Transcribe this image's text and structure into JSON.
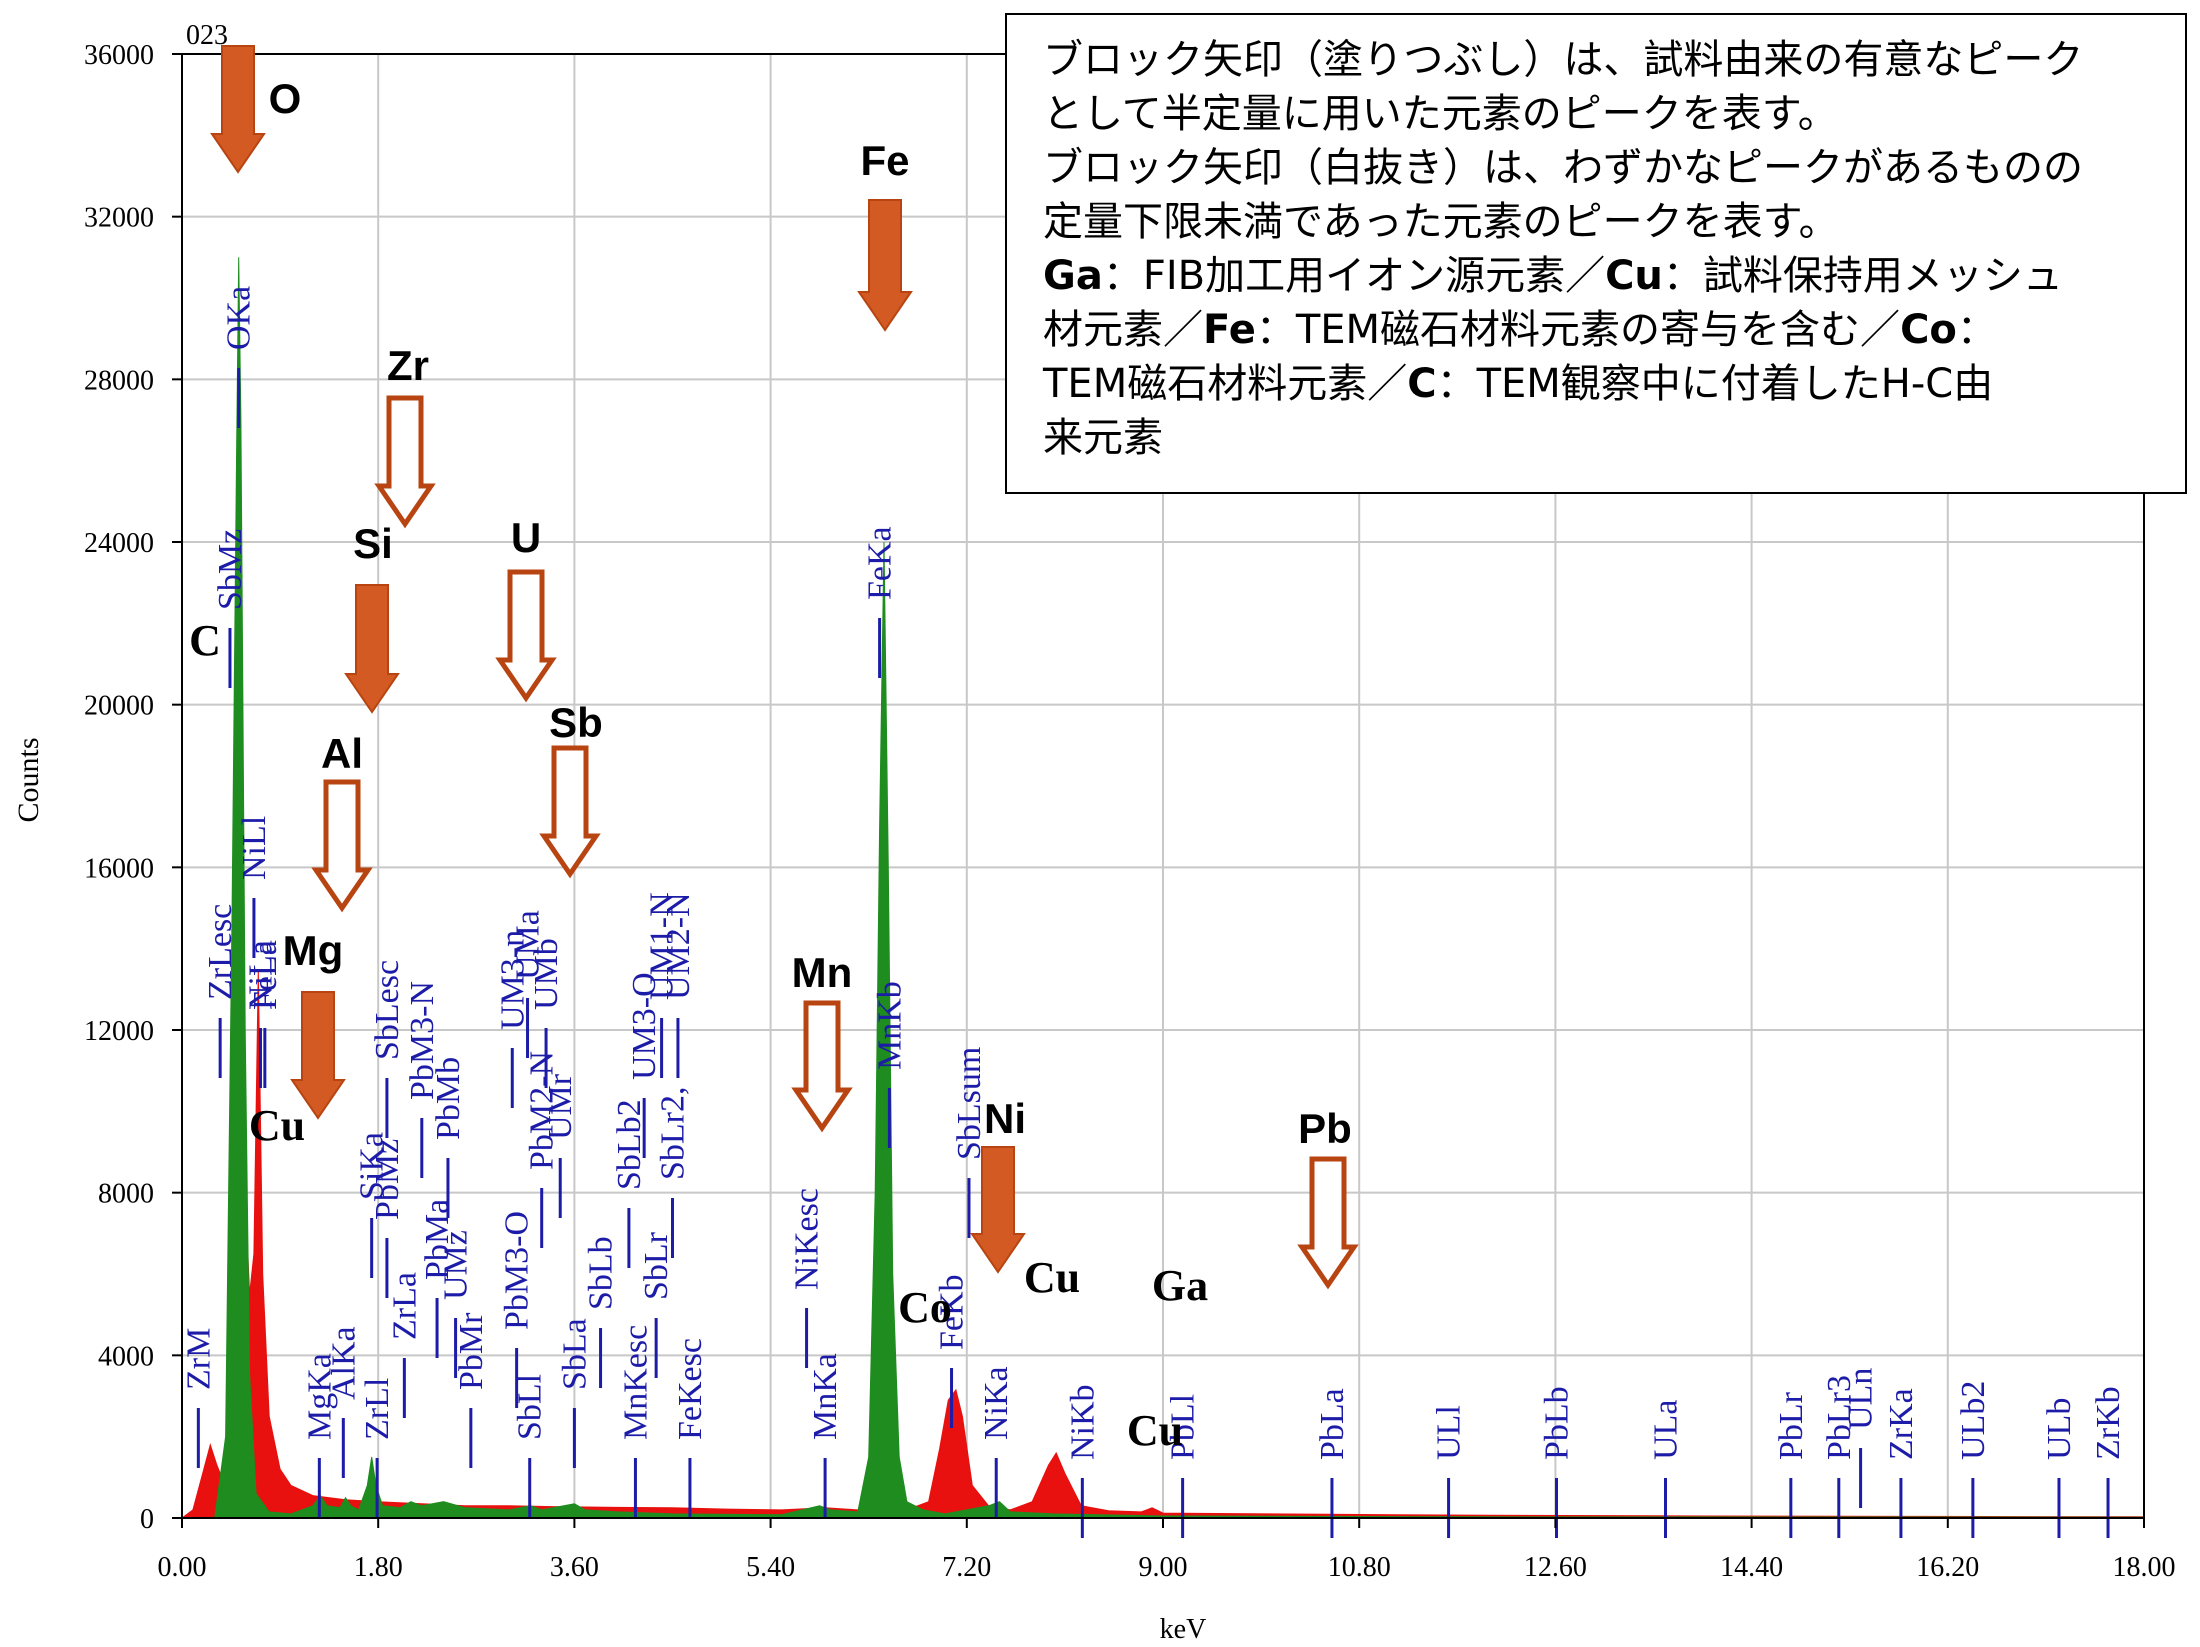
{
  "chart_data": {
    "type": "area",
    "corner_label": "023",
    "ylabel": "Counts",
    "xlabel": "keV",
    "xlim": [
      0,
      18
    ],
    "ylim": [
      0,
      36000
    ],
    "x_ticks": [
      "0.00",
      "1.80",
      "3.60",
      "5.40",
      "7.20",
      "9.00",
      "10.80",
      "12.60",
      "14.40",
      "16.20",
      "18.00"
    ],
    "y_ticks": [
      "0",
      "4000",
      "8000",
      "12000",
      "16000",
      "20000",
      "24000",
      "28000",
      "32000",
      "36000"
    ],
    "grid": true,
    "series": [
      {
        "color": "#e8110f",
        "points": [
          [
            0,
            0
          ],
          [
            0.1,
            200
          ],
          [
            0.2,
            1200
          ],
          [
            0.26,
            1800
          ],
          [
            0.32,
            1300
          ],
          [
            0.38,
            900
          ],
          [
            0.44,
            2000
          ],
          [
            0.5,
            9000
          ],
          [
            0.54,
            13000
          ],
          [
            0.58,
            8000
          ],
          [
            0.62,
            5500
          ],
          [
            0.66,
            6500
          ],
          [
            0.7,
            13500
          ],
          [
            0.74,
            6000
          ],
          [
            0.8,
            2500
          ],
          [
            0.9,
            1200
          ],
          [
            1.0,
            800
          ],
          [
            1.2,
            550
          ],
          [
            1.5,
            450
          ],
          [
            1.8,
            400
          ],
          [
            2.2,
            350
          ],
          [
            2.6,
            300
          ],
          [
            3.0,
            300
          ],
          [
            3.4,
            280
          ],
          [
            4.0,
            260
          ],
          [
            4.5,
            250
          ],
          [
            5.0,
            220
          ],
          [
            5.5,
            200
          ],
          [
            5.9,
            250
          ],
          [
            6.2,
            200
          ],
          [
            6.6,
            150
          ],
          [
            6.85,
            400
          ],
          [
            6.95,
            1700
          ],
          [
            7.03,
            2900
          ],
          [
            7.1,
            3150
          ],
          [
            7.16,
            2500
          ],
          [
            7.25,
            800
          ],
          [
            7.4,
            300
          ],
          [
            7.6,
            200
          ],
          [
            7.8,
            400
          ],
          [
            7.95,
            1300
          ],
          [
            8.02,
            1600
          ],
          [
            8.1,
            1100
          ],
          [
            8.25,
            300
          ],
          [
            8.5,
            180
          ],
          [
            8.8,
            150
          ],
          [
            8.9,
            250
          ],
          [
            9.0,
            120
          ],
          [
            9.5,
            110
          ],
          [
            10.5,
            90
          ],
          [
            12,
            70
          ],
          [
            14,
            50
          ],
          [
            16,
            40
          ],
          [
            18,
            30
          ]
        ]
      },
      {
        "color": "#1e8c1e",
        "points": [
          [
            0,
            0
          ],
          [
            0.3,
            0
          ],
          [
            0.4,
            2000
          ],
          [
            0.46,
            15000
          ],
          [
            0.5,
            26000
          ],
          [
            0.52,
            31000
          ],
          [
            0.54,
            27000
          ],
          [
            0.58,
            12000
          ],
          [
            0.62,
            3500
          ],
          [
            0.68,
            600
          ],
          [
            0.8,
            150
          ],
          [
            1.0,
            100
          ],
          [
            1.2,
            300
          ],
          [
            1.27,
            550
          ],
          [
            1.33,
            300
          ],
          [
            1.45,
            250
          ],
          [
            1.5,
            500
          ],
          [
            1.55,
            300
          ],
          [
            1.62,
            200
          ],
          [
            1.7,
            800
          ],
          [
            1.74,
            1500
          ],
          [
            1.78,
            800
          ],
          [
            1.84,
            300
          ],
          [
            2.0,
            250
          ],
          [
            2.1,
            400
          ],
          [
            2.2,
            300
          ],
          [
            2.4,
            400
          ],
          [
            2.6,
            250
          ],
          [
            3.0,
            200
          ],
          [
            3.2,
            300
          ],
          [
            3.3,
            200
          ],
          [
            3.6,
            350
          ],
          [
            3.7,
            200
          ],
          [
            4.0,
            150
          ],
          [
            4.5,
            100
          ],
          [
            5.5,
            80
          ],
          [
            5.85,
            300
          ],
          [
            5.95,
            200
          ],
          [
            6.2,
            150
          ],
          [
            6.3,
            1500
          ],
          [
            6.36,
            8000
          ],
          [
            6.4,
            17000
          ],
          [
            6.44,
            24000
          ],
          [
            6.48,
            16000
          ],
          [
            6.52,
            6000
          ],
          [
            6.58,
            1500
          ],
          [
            6.65,
            400
          ],
          [
            6.8,
            200
          ],
          [
            7.0,
            100
          ],
          [
            7.4,
            300
          ],
          [
            7.5,
            400
          ],
          [
            7.6,
            150
          ],
          [
            8.0,
            100
          ],
          [
            9,
            50
          ],
          [
            12,
            30
          ],
          [
            18,
            20
          ]
        ]
      }
    ],
    "line_markers": [
      {
        "label": "ZrM",
        "kev": 0.15
      },
      {
        "label": "ZrLesc",
        "kev": 0.35
      },
      {
        "label": "SbMz",
        "kev": 0.44
      },
      {
        "label": "OKa",
        "kev": 0.52
      },
      {
        "label": "NiLl",
        "kev": 0.66
      },
      {
        "label": "NiLa",
        "kev": 0.72
      },
      {
        "label": "FeLa",
        "kev": 0.76
      },
      {
        "label": "MgKa",
        "kev": 1.26
      },
      {
        "label": "AlKa",
        "kev": 1.48
      },
      {
        "label": "ZrLl",
        "kev": 1.79
      },
      {
        "label": "SiKa",
        "kev": 1.74
      },
      {
        "label": "ZrLa",
        "kev": 2.04
      },
      {
        "label": "PbMz",
        "kev": 1.88
      },
      {
        "label": "PbMa",
        "kev": 2.34
      },
      {
        "label": "PbMr",
        "kev": 2.65
      },
      {
        "label": "UMz",
        "kev": 2.51
      },
      {
        "label": "PbMb",
        "kev": 2.44
      },
      {
        "label": "SbLesc",
        "kev": 1.88
      },
      {
        "label": "PbM3-N",
        "kev": 2.2
      },
      {
        "label": "SbLl",
        "kev": 3.19
      },
      {
        "label": "PbM3-O",
        "kev": 3.07
      },
      {
        "label": "PbM2-N",
        "kev": 3.3
      },
      {
        "label": "UM3-n",
        "kev": 3.03
      },
      {
        "label": "UMa",
        "kev": 3.17
      },
      {
        "label": "UMb",
        "kev": 3.34
      },
      {
        "label": "UMr",
        "kev": 3.47
      },
      {
        "label": "SbLa",
        "kev": 3.6
      },
      {
        "label": "SbLb",
        "kev": 3.84
      },
      {
        "label": "SbLb2",
        "kev": 4.1
      },
      {
        "label": "UM3-O",
        "kev": 4.24
      },
      {
        "label": "UM1-N",
        "kev": 4.4
      },
      {
        "label": "UM2-N",
        "kev": 4.55
      },
      {
        "label": "MnKesc",
        "kev": 4.16
      },
      {
        "label": "SbLr",
        "kev": 4.35
      },
      {
        "label": "SbLr2,",
        "kev": 4.5
      },
      {
        "label": "FeKesc",
        "kev": 4.66
      },
      {
        "label": "MnKa",
        "kev": 5.9
      },
      {
        "label": "NiKesc",
        "kev": 5.73
      },
      {
        "label": "MnKb",
        "kev": 6.49
      },
      {
        "label": "FeKa",
        "kev": 6.4
      },
      {
        "label": "FeKb",
        "kev": 7.06
      },
      {
        "label": "SbLsum",
        "kev": 7.22
      },
      {
        "label": "NiKa",
        "kev": 7.47
      },
      {
        "label": "NiKb",
        "kev": 8.26
      },
      {
        "label": "PbLl",
        "kev": 9.18
      },
      {
        "label": "PbLa",
        "kev": 10.55
      },
      {
        "label": "ULl",
        "kev": 11.62
      },
      {
        "label": "PbLb",
        "kev": 12.61
      },
      {
        "label": "ULa",
        "kev": 13.61
      },
      {
        "label": "PbLr",
        "kev": 14.76
      },
      {
        "label": "PbLr3",
        "kev": 15.2
      },
      {
        "label": "ULn",
        "kev": 15.4
      },
      {
        "label": "ZrKa",
        "kev": 15.77
      },
      {
        "label": "ULb2",
        "kev": 16.43
      },
      {
        "label": "ULb",
        "kev": 17.22
      },
      {
        "label": "ZrKb",
        "kev": 17.67
      }
    ],
    "element_annotations": [
      {
        "label": "O",
        "arrow": "filled"
      },
      {
        "label": "Fe",
        "arrow": "filled"
      },
      {
        "label": "Si",
        "arrow": "filled"
      },
      {
        "label": "Mg",
        "arrow": "filled"
      },
      {
        "label": "Ni",
        "arrow": "filled"
      },
      {
        "label": "Zr",
        "arrow": "hollow"
      },
      {
        "label": "U",
        "arrow": "hollow"
      },
      {
        "label": "Sb",
        "arrow": "hollow"
      },
      {
        "label": "Al",
        "arrow": "hollow"
      },
      {
        "label": "Mn",
        "arrow": "hollow"
      },
      {
        "label": "Pb",
        "arrow": "hollow"
      },
      {
        "label": "C",
        "arrow": "none"
      },
      {
        "label": "Cu",
        "arrow": "none"
      },
      {
        "label": "Co",
        "arrow": "none"
      },
      {
        "label": "Cu",
        "arrow": "none"
      },
      {
        "label": "Ga",
        "arrow": "none"
      },
      {
        "label": "Cu",
        "arrow": "none"
      }
    ],
    "colors": {
      "arrow": "#d35a22",
      "arrow_edge": "#b84511",
      "marker": "#1c1ca8",
      "grid": "#c8c8c8"
    }
  },
  "legend": {
    "line1": "ブロック矢印（塗りつぶし）は、試料由来の有意なピーク",
    "line2": "として半定量に用いた元素のピークを表す。",
    "line3": "ブロック矢印（白抜き）は、わずかなピークがあるものの",
    "line4": "定量下限未満であった元素のピークを表す。",
    "ga": "Ga",
    "ga_text": "：FIB加工用イオン源元素／",
    "cu": "Cu",
    "cu_text": "：試料保持用メッシュ",
    "line6a": "材元素／",
    "fe": "Fe",
    "fe_text": "：TEM磁石材料元素の寄与を含む／",
    "co": "Co",
    "co_colon": "：",
    "line7a": "TEM磁石材料元素／",
    "c": "C",
    "c_text": "：TEM観察中に付着したH-C由",
    "line8": "来元素"
  }
}
